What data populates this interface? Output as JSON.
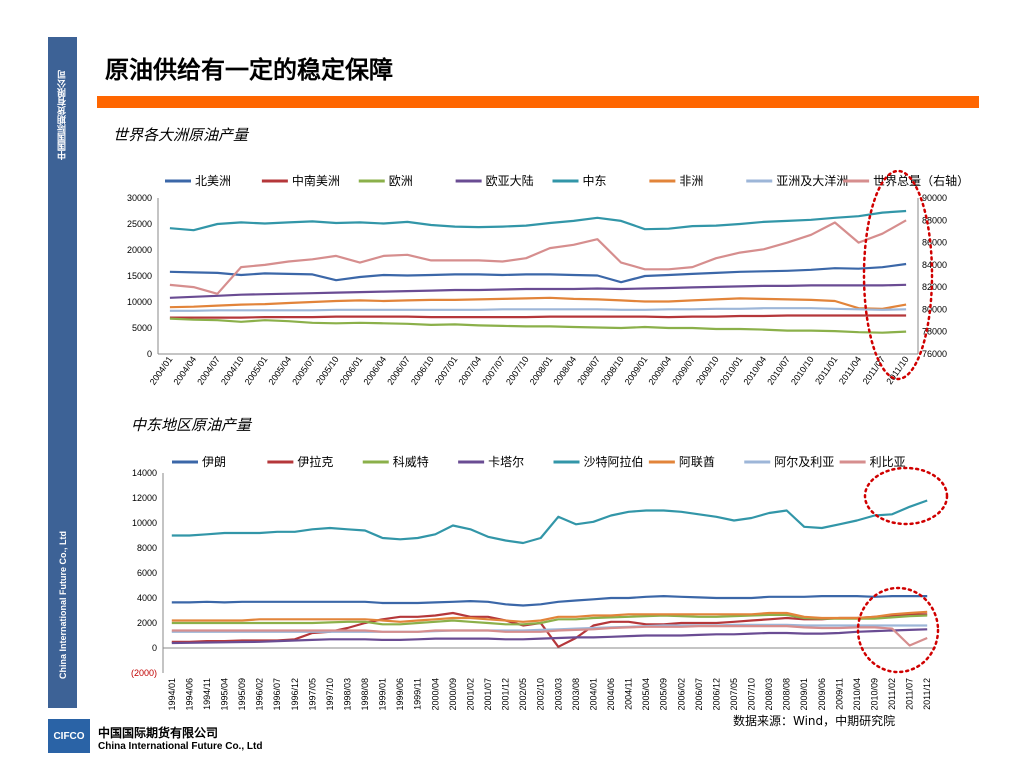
{
  "page": {
    "title": "原油供给有一定的稳定保障",
    "side_cn": "中国国际期货有限公司",
    "side_en": "China International Future Co., Ltd",
    "subtitle1": "世界各大洲原油产量",
    "subtitle2": "中东地区原油产量",
    "source": "数据来源：Wind，中期研究院",
    "logo": "CIFCO",
    "company_cn": "中国国际期货有限公司",
    "company_en": "China International Future Co., Ltd"
  },
  "chart_data": [
    {
      "type": "line",
      "title": "",
      "x": [
        "2004/01",
        "2004/04",
        "2004/07",
        "2004/10",
        "2005/01",
        "2005/04",
        "2005/07",
        "2005/10",
        "2006/01",
        "2006/04",
        "2006/07",
        "2006/10",
        "2007/01",
        "2007/04",
        "2007/07",
        "2007/10",
        "2008/01",
        "2008/04",
        "2008/07",
        "2008/10",
        "2009/01",
        "2009/04",
        "2009/07",
        "2009/10",
        "2010/01",
        "2010/04",
        "2010/07",
        "2010/10",
        "2011/01",
        "2011/04",
        "2011/07",
        "2011/10"
      ],
      "ylim": [
        0,
        30000
      ],
      "yticks": [
        "0",
        "5000",
        "10000",
        "15000",
        "20000",
        "25000",
        "30000"
      ],
      "y2lim": [
        76000,
        90000
      ],
      "y2ticks": [
        "76000",
        "78000",
        "80000",
        "82000",
        "84000",
        "86000",
        "88000",
        "90000"
      ],
      "legend_position": "top",
      "series": [
        {
          "name": "北美洲",
          "color": "#3b67a8",
          "axis": "left",
          "values": [
            15800,
            15700,
            15600,
            15200,
            15500,
            15400,
            15300,
            14200,
            14800,
            15200,
            15100,
            15200,
            15300,
            15300,
            15200,
            15300,
            15300,
            15200,
            15100,
            13800,
            15000,
            15200,
            15400,
            15600,
            15800,
            15900,
            16000,
            16200,
            16500,
            16400,
            16700,
            17300
          ]
        },
        {
          "name": "中南美洲",
          "color": "#b5373a",
          "axis": "left",
          "values": [
            7000,
            7000,
            7000,
            7000,
            7100,
            7100,
            7100,
            7200,
            7200,
            7200,
            7200,
            7100,
            7100,
            7100,
            7100,
            7100,
            7200,
            7200,
            7200,
            7200,
            7200,
            7100,
            7200,
            7200,
            7300,
            7300,
            7400,
            7400,
            7400,
            7400,
            7400,
            7400
          ]
        },
        {
          "name": "欧洲",
          "color": "#8bb04a",
          "axis": "left",
          "values": [
            6800,
            6600,
            6500,
            6200,
            6500,
            6300,
            6000,
            5900,
            6000,
            5900,
            5800,
            5600,
            5700,
            5500,
            5400,
            5300,
            5300,
            5200,
            5100,
            5000,
            5200,
            5000,
            5000,
            4800,
            4800,
            4700,
            4500,
            4500,
            4400,
            4200,
            4100,
            4300
          ]
        },
        {
          "name": "欧亚大陆",
          "color": "#6a4c93",
          "axis": "left",
          "values": [
            10800,
            11000,
            11200,
            11400,
            11500,
            11600,
            11700,
            11800,
            11900,
            12000,
            12100,
            12200,
            12300,
            12300,
            12400,
            12500,
            12500,
            12500,
            12600,
            12500,
            12600,
            12700,
            12800,
            12900,
            13000,
            13100,
            13100,
            13200,
            13200,
            13200,
            13200,
            13300
          ]
        },
        {
          "name": "中东",
          "color": "#3296a8",
          "axis": "left",
          "values": [
            24200,
            23800,
            25000,
            25300,
            25100,
            25300,
            25500,
            25200,
            25300,
            25100,
            25400,
            24800,
            24500,
            24400,
            24500,
            24700,
            25200,
            25600,
            26200,
            25600,
            24000,
            24100,
            24600,
            24700,
            25000,
            25400,
            25600,
            25800,
            26200,
            26500,
            27200,
            27500
          ]
        },
        {
          "name": "非洲",
          "color": "#e2843a",
          "axis": "left",
          "values": [
            9000,
            9100,
            9300,
            9500,
            9600,
            9800,
            10000,
            10200,
            10300,
            10200,
            10300,
            10400,
            10400,
            10500,
            10600,
            10700,
            10800,
            10600,
            10500,
            10300,
            10100,
            10100,
            10300,
            10500,
            10700,
            10600,
            10500,
            10400,
            10200,
            8800,
            8700,
            9500
          ]
        },
        {
          "name": "亚洲及大洋洲",
          "color": "#9db6d8",
          "axis": "left",
          "values": [
            8300,
            8300,
            8400,
            8400,
            8400,
            8400,
            8400,
            8500,
            8500,
            8500,
            8500,
            8500,
            8500,
            8500,
            8600,
            8600,
            8600,
            8600,
            8600,
            8500,
            8500,
            8600,
            8600,
            8700,
            8700,
            8800,
            8800,
            8800,
            8700,
            8600,
            8500,
            8600
          ]
        },
        {
          "name": "世界总量（右轴）",
          "color": "#d68e8e",
          "axis": "right",
          "values": [
            82200,
            82000,
            81400,
            83800,
            84000,
            84300,
            84500,
            84800,
            84200,
            84800,
            84900,
            84400,
            84400,
            84400,
            84300,
            84600,
            85500,
            85800,
            86300,
            84200,
            83600,
            83600,
            83800,
            84600,
            85100,
            85400,
            86000,
            86700,
            87800,
            86000,
            86800,
            88000
          ]
        }
      ]
    },
    {
      "type": "line",
      "title": "",
      "x": [
        "1994/01",
        "1994/06",
        "1994/11",
        "1995/04",
        "1995/09",
        "1996/02",
        "1996/07",
        "1996/12",
        "1997/05",
        "1997/10",
        "1998/03",
        "1998/08",
        "1999/01",
        "1999/06",
        "1999/11",
        "2000/04",
        "2000/09",
        "2001/02",
        "2001/07",
        "2001/12",
        "2002/05",
        "2002/10",
        "2003/03",
        "2003/08",
        "2004/01",
        "2004/06",
        "2004/11",
        "2005/04",
        "2005/09",
        "2006/02",
        "2006/07",
        "2006/12",
        "2007/05",
        "2007/10",
        "2008/03",
        "2008/08",
        "2009/01",
        "2009/06",
        "2009/11",
        "2010/04",
        "2010/09",
        "2011/02",
        "2011/07",
        "2011/12"
      ],
      "ylim": [
        -2000,
        14000
      ],
      "yticks": [
        "(2000)",
        "0",
        "2000",
        "4000",
        "6000",
        "8000",
        "10000",
        "12000",
        "14000"
      ],
      "legend_position": "top",
      "series": [
        {
          "name": "伊朗",
          "color": "#3b67a8",
          "values": [
            3650,
            3650,
            3700,
            3650,
            3700,
            3700,
            3700,
            3700,
            3700,
            3700,
            3700,
            3700,
            3600,
            3600,
            3600,
            3650,
            3700,
            3750,
            3700,
            3500,
            3400,
            3500,
            3700,
            3800,
            3900,
            4000,
            4000,
            4100,
            4150,
            4100,
            4050,
            4000,
            4000,
            4000,
            4100,
            4100,
            4100,
            4150,
            4150,
            4150,
            4100,
            4150,
            4150,
            4150
          ]
        },
        {
          "name": "伊拉克",
          "color": "#b5373a",
          "values": [
            500,
            500,
            550,
            550,
            600,
            600,
            600,
            700,
            1200,
            1300,
            1600,
            2000,
            2300,
            2500,
            2500,
            2600,
            2800,
            2500,
            2500,
            2200,
            1800,
            2000,
            100,
            800,
            1800,
            2100,
            2100,
            1900,
            1900,
            2000,
            2000,
            2000,
            2100,
            2200,
            2300,
            2400,
            2300,
            2300,
            2400,
            2400,
            2500,
            2600,
            2700,
            2700
          ]
        },
        {
          "name": "科威特",
          "color": "#8bb04a",
          "values": [
            2000,
            2000,
            2000,
            2000,
            2000,
            2000,
            2000,
            2000,
            2000,
            2050,
            2100,
            2100,
            1900,
            1900,
            2000,
            2100,
            2200,
            2100,
            2000,
            1900,
            1900,
            2000,
            2300,
            2300,
            2400,
            2450,
            2500,
            2550,
            2600,
            2550,
            2500,
            2500,
            2550,
            2600,
            2650,
            2650,
            2400,
            2350,
            2350,
            2350,
            2350,
            2450,
            2550,
            2600
          ]
        },
        {
          "name": "卡塔尔",
          "color": "#6a4c93",
          "values": [
            400,
            420,
            440,
            460,
            480,
            500,
            550,
            600,
            650,
            700,
            700,
            700,
            650,
            650,
            700,
            750,
            750,
            750,
            750,
            700,
            700,
            750,
            800,
            850,
            850,
            900,
            950,
            1000,
            1000,
            1000,
            1050,
            1100,
            1100,
            1150,
            1200,
            1200,
            1150,
            1150,
            1200,
            1300,
            1350,
            1400,
            1450,
            1500
          ]
        },
        {
          "name": "沙特阿拉伯",
          "color": "#3296a8",
          "values": [
            9000,
            9000,
            9100,
            9200,
            9200,
            9200,
            9300,
            9300,
            9500,
            9600,
            9500,
            9400,
            8800,
            8700,
            8800,
            9100,
            9800,
            9500,
            8900,
            8600,
            8400,
            8800,
            10500,
            9900,
            10100,
            10600,
            10900,
            11000,
            11000,
            10900,
            10700,
            10500,
            10200,
            10400,
            10800,
            11000,
            9700,
            9600,
            9900,
            10200,
            10600,
            10700,
            11300,
            11800
          ]
        },
        {
          "name": "阿联酋",
          "color": "#e2843a",
          "values": [
            2200,
            2200,
            2200,
            2200,
            2200,
            2300,
            2300,
            2300,
            2300,
            2300,
            2300,
            2300,
            2200,
            2100,
            2200,
            2300,
            2400,
            2400,
            2300,
            2200,
            2100,
            2200,
            2500,
            2500,
            2600,
            2600,
            2700,
            2700,
            2700,
            2700,
            2700,
            2700,
            2700,
            2700,
            2800,
            2800,
            2500,
            2400,
            2400,
            2400,
            2500,
            2700,
            2800,
            2900
          ]
        },
        {
          "name": "阿尔及利亚",
          "color": "#9db6d8",
          "values": [
            1300,
            1300,
            1300,
            1300,
            1300,
            1300,
            1300,
            1300,
            1300,
            1300,
            1300,
            1300,
            1300,
            1300,
            1300,
            1350,
            1400,
            1400,
            1400,
            1400,
            1400,
            1450,
            1500,
            1550,
            1600,
            1650,
            1700,
            1750,
            1800,
            1800,
            1800,
            1800,
            1850,
            1850,
            1850,
            1850,
            1800,
            1800,
            1800,
            1800,
            1800,
            1800,
            1800,
            1800
          ]
        },
        {
          "name": "利比亚",
          "color": "#d68e8e",
          "values": [
            1400,
            1400,
            1400,
            1400,
            1400,
            1400,
            1400,
            1400,
            1400,
            1400,
            1400,
            1400,
            1300,
            1300,
            1300,
            1400,
            1400,
            1400,
            1400,
            1300,
            1300,
            1300,
            1400,
            1450,
            1500,
            1600,
            1650,
            1700,
            1700,
            1700,
            1750,
            1750,
            1750,
            1750,
            1750,
            1750,
            1650,
            1600,
            1600,
            1650,
            1650,
            1550,
            200,
            800
          ]
        }
      ]
    }
  ]
}
